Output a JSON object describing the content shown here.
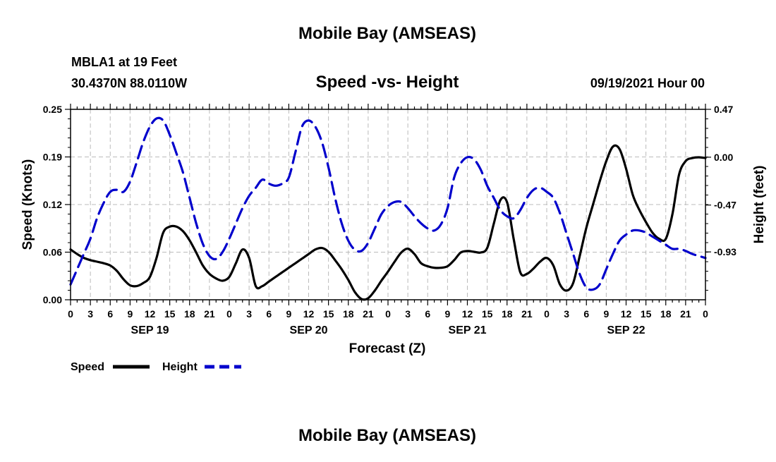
{
  "page": {
    "title": "Mobile Bay (AMSEAS)",
    "footer_title": "Mobile Bay (AMSEAS)",
    "station": "MBLA1 at 19 Feet",
    "coords": "30.4370N  88.0110W",
    "datetime": "09/19/2021 Hour 00"
  },
  "chart_data": {
    "type": "line",
    "title": "Speed -vs- Height",
    "xlabel": "Forecast (Z)",
    "ylabel_left": "Speed (Knots)",
    "ylabel_right": "Height (feet)",
    "xlim": [
      0,
      96
    ],
    "ylim_left": [
      0,
      0.25
    ],
    "ylim_right": [
      -1.4,
      0.47
    ],
    "x_ticks": [
      0,
      3,
      6,
      9,
      12,
      15,
      18,
      21,
      24,
      27,
      30,
      33,
      36,
      39,
      42,
      45,
      48,
      51,
      54,
      57,
      60,
      63,
      66,
      69,
      72,
      75,
      78,
      81,
      84,
      87,
      90,
      93,
      96
    ],
    "x_tick_labels": [
      "0",
      "3",
      "6",
      "9",
      "12",
      "15",
      "18",
      "21",
      "0",
      "3",
      "6",
      "9",
      "12",
      "15",
      "18",
      "21",
      "0",
      "3",
      "6",
      "9",
      "12",
      "15",
      "18",
      "21",
      "0",
      "3",
      "6",
      "9",
      "12",
      "15",
      "18",
      "21",
      "0"
    ],
    "y_left_ticks": [
      0,
      0.0625,
      0.125,
      0.1875,
      0.25
    ],
    "y_left_tick_labels": [
      "0.00",
      "0.06",
      "0.12",
      "0.19",
      "0.25"
    ],
    "y_right_ticks": [
      0.47,
      0.0,
      -0.47,
      -0.93
    ],
    "y_right_tick_labels": [
      "0.47",
      "0.00",
      "-0.47",
      "-0.93"
    ],
    "day_labels": [
      {
        "x": 12,
        "label": "SEP 19"
      },
      {
        "x": 36,
        "label": "SEP 20"
      },
      {
        "x": 60,
        "label": "SEP 21"
      },
      {
        "x": 84,
        "label": "SEP 22"
      }
    ],
    "grid": true,
    "legend_position": "bottom-left",
    "series": [
      {
        "name": "Speed",
        "axis": "left",
        "color": "#000000",
        "dash": "solid",
        "x": [
          0,
          1,
          2,
          3,
          4,
          5,
          6,
          7,
          8,
          9,
          10,
          11,
          12,
          13,
          14,
          15,
          16,
          17,
          18,
          19,
          20,
          21,
          22,
          23,
          24,
          25,
          26,
          27,
          28,
          29,
          30,
          31,
          32,
          33,
          34,
          35,
          36,
          37,
          38,
          39,
          40,
          41,
          42,
          43,
          44,
          45,
          46,
          47,
          48,
          49,
          50,
          51,
          52,
          53,
          54,
          55,
          56,
          57,
          58,
          59,
          60,
          61,
          62,
          63,
          64,
          65,
          66,
          67,
          68,
          69,
          70,
          71,
          72,
          73,
          74,
          75,
          76,
          77,
          78,
          79,
          80,
          81,
          82,
          83,
          84,
          85,
          86,
          87,
          88,
          89,
          90,
          91,
          92,
          93,
          94,
          95,
          96
        ],
        "y": [
          0.066,
          0.06,
          0.055,
          0.052,
          0.05,
          0.048,
          0.045,
          0.038,
          0.027,
          0.019,
          0.018,
          0.022,
          0.03,
          0.055,
          0.088,
          0.096,
          0.096,
          0.09,
          0.078,
          0.062,
          0.045,
          0.034,
          0.028,
          0.025,
          0.03,
          0.048,
          0.066,
          0.055,
          0.018,
          0.018,
          0.024,
          0.03,
          0.036,
          0.042,
          0.048,
          0.054,
          0.06,
          0.066,
          0.068,
          0.063,
          0.052,
          0.04,
          0.026,
          0.01,
          0.001,
          0.002,
          0.012,
          0.025,
          0.037,
          0.05,
          0.062,
          0.067,
          0.06,
          0.048,
          0.044,
          0.042,
          0.042,
          0.044,
          0.052,
          0.062,
          0.064,
          0.063,
          0.062,
          0.068,
          0.1,
          0.131,
          0.128,
          0.08,
          0.036,
          0.034,
          0.041,
          0.05,
          0.055,
          0.045,
          0.02,
          0.012,
          0.022,
          0.058,
          0.095,
          0.125,
          0.155,
          0.182,
          0.201,
          0.198,
          0.172,
          0.138,
          0.118,
          0.102,
          0.088,
          0.08,
          0.08,
          0.112,
          0.164,
          0.182,
          0.186,
          0.187,
          0.186
        ]
      },
      {
        "name": "Height",
        "axis": "right",
        "color": "#0000cc",
        "dash": "dashed",
        "x": [
          0,
          1,
          2,
          3,
          4,
          5,
          6,
          7,
          8,
          9,
          10,
          11,
          12,
          13,
          14,
          15,
          16,
          17,
          18,
          19,
          20,
          21,
          22,
          23,
          24,
          25,
          26,
          27,
          28,
          29,
          30,
          31,
          32,
          33,
          34,
          35,
          36,
          37,
          38,
          39,
          40,
          41,
          42,
          43,
          44,
          45,
          46,
          47,
          48,
          49,
          50,
          51,
          52,
          53,
          54,
          55,
          56,
          57,
          58,
          59,
          60,
          61,
          62,
          63,
          64,
          65,
          66,
          67,
          68,
          69,
          70,
          71,
          72,
          73,
          74,
          75,
          76,
          77,
          78,
          79,
          80,
          81,
          82,
          83,
          84,
          85,
          86,
          87,
          88,
          89,
          90,
          91,
          92,
          93,
          94,
          95,
          96
        ],
        "y": [
          -1.25,
          -1.1,
          -0.95,
          -0.8,
          -0.6,
          -0.45,
          -0.34,
          -0.32,
          -0.34,
          -0.24,
          -0.05,
          0.15,
          0.3,
          0.38,
          0.36,
          0.22,
          0.04,
          -0.15,
          -0.4,
          -0.65,
          -0.85,
          -0.97,
          -1.0,
          -0.93,
          -0.8,
          -0.65,
          -0.5,
          -0.38,
          -0.3,
          -0.22,
          -0.26,
          -0.28,
          -0.26,
          -0.2,
          0.05,
          0.3,
          0.36,
          0.3,
          0.15,
          -0.1,
          -0.4,
          -0.65,
          -0.82,
          -0.91,
          -0.92,
          -0.84,
          -0.7,
          -0.56,
          -0.48,
          -0.44,
          -0.44,
          -0.5,
          -0.58,
          -0.65,
          -0.7,
          -0.72,
          -0.66,
          -0.5,
          -0.2,
          -0.06,
          0.0,
          -0.02,
          -0.12,
          -0.28,
          -0.4,
          -0.52,
          -0.58,
          -0.6,
          -0.52,
          -0.4,
          -0.32,
          -0.3,
          -0.34,
          -0.4,
          -0.55,
          -0.75,
          -0.95,
          -1.15,
          -1.28,
          -1.3,
          -1.25,
          -1.1,
          -0.95,
          -0.82,
          -0.76,
          -0.72,
          -0.72,
          -0.74,
          -0.78,
          -0.82,
          -0.86,
          -0.9,
          -0.9,
          -0.92,
          -0.95,
          -0.97,
          -0.99
        ]
      }
    ]
  }
}
